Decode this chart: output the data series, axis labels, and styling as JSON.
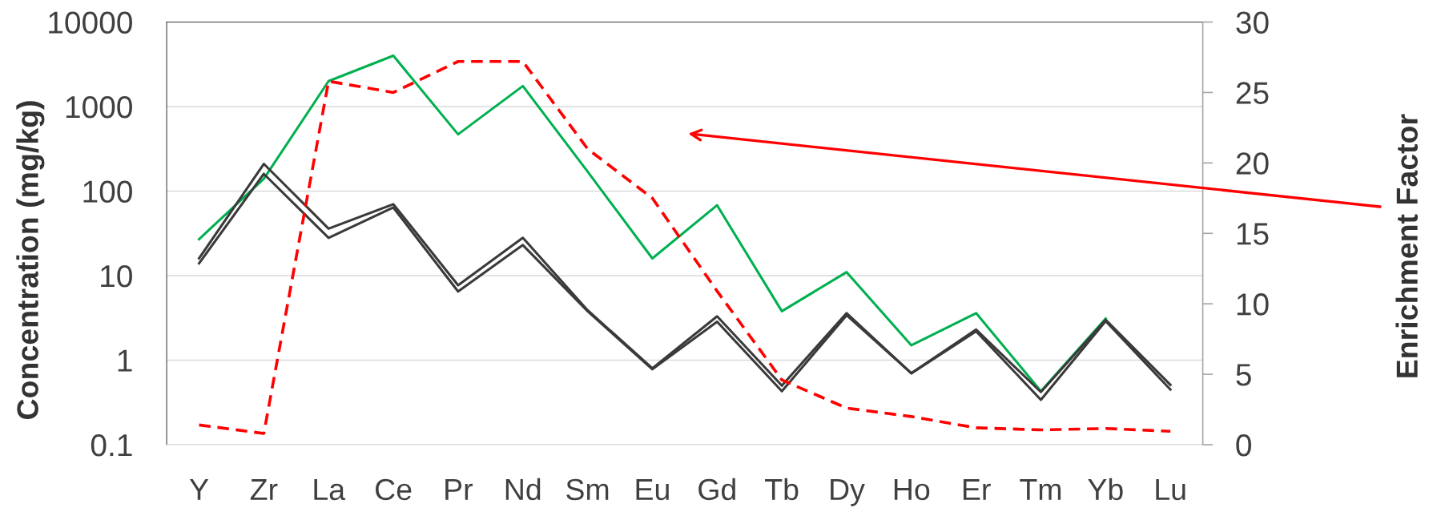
{
  "chart_data": {
    "type": "line",
    "categories": [
      "Y",
      "Zr",
      "La",
      "Ce",
      "Pr",
      "Nd",
      "Sm",
      "Eu",
      "Gd",
      "Tb",
      "Dy",
      "Ho",
      "Er",
      "Tm",
      "Yb",
      "Lu"
    ],
    "ylabel": "Concentration (mg/kg)",
    "y2label": "Enrichment Factor",
    "log": "y",
    "ylim": [
      0.1,
      10000
    ],
    "yticks": [
      0.1,
      1,
      10,
      100,
      1000,
      10000
    ],
    "y2lim": [
      0,
      30
    ],
    "y2ticks": [
      0,
      5,
      10,
      15,
      20,
      25,
      30
    ],
    "grid": "y",
    "series": [
      {
        "color": "#00b050",
        "values": [
          27,
          140,
          2000,
          4000,
          470,
          1750,
          170,
          16,
          68,
          3.8,
          11,
          1.5,
          3.6,
          0.43,
          3.1,
          null
        ]
      },
      {
        "color": "#3a3a3a",
        "values": [
          16,
          210,
          36,
          70,
          7.7,
          28,
          3.9,
          0.8,
          3.3,
          0.5,
          3.6,
          0.7,
          2.3,
          0.42,
          3.0,
          0.51
        ]
      },
      {
        "color": "#3a3a3a",
        "values": [
          14,
          160,
          28,
          64,
          6.5,
          23,
          3.8,
          0.78,
          2.85,
          0.43,
          3.4,
          0.7,
          2.2,
          0.34,
          2.9,
          0.45
        ]
      },
      {
        "color": "#ff0000",
        "axis": "y2",
        "line_style": "dashed",
        "values": [
          1.4,
          0.8,
          25.8,
          25,
          27.2,
          27.2,
          21,
          17.5,
          10.9,
          4.6,
          2.6,
          2,
          1.2,
          1.05,
          1.15,
          0.95
        ]
      }
    ]
  }
}
